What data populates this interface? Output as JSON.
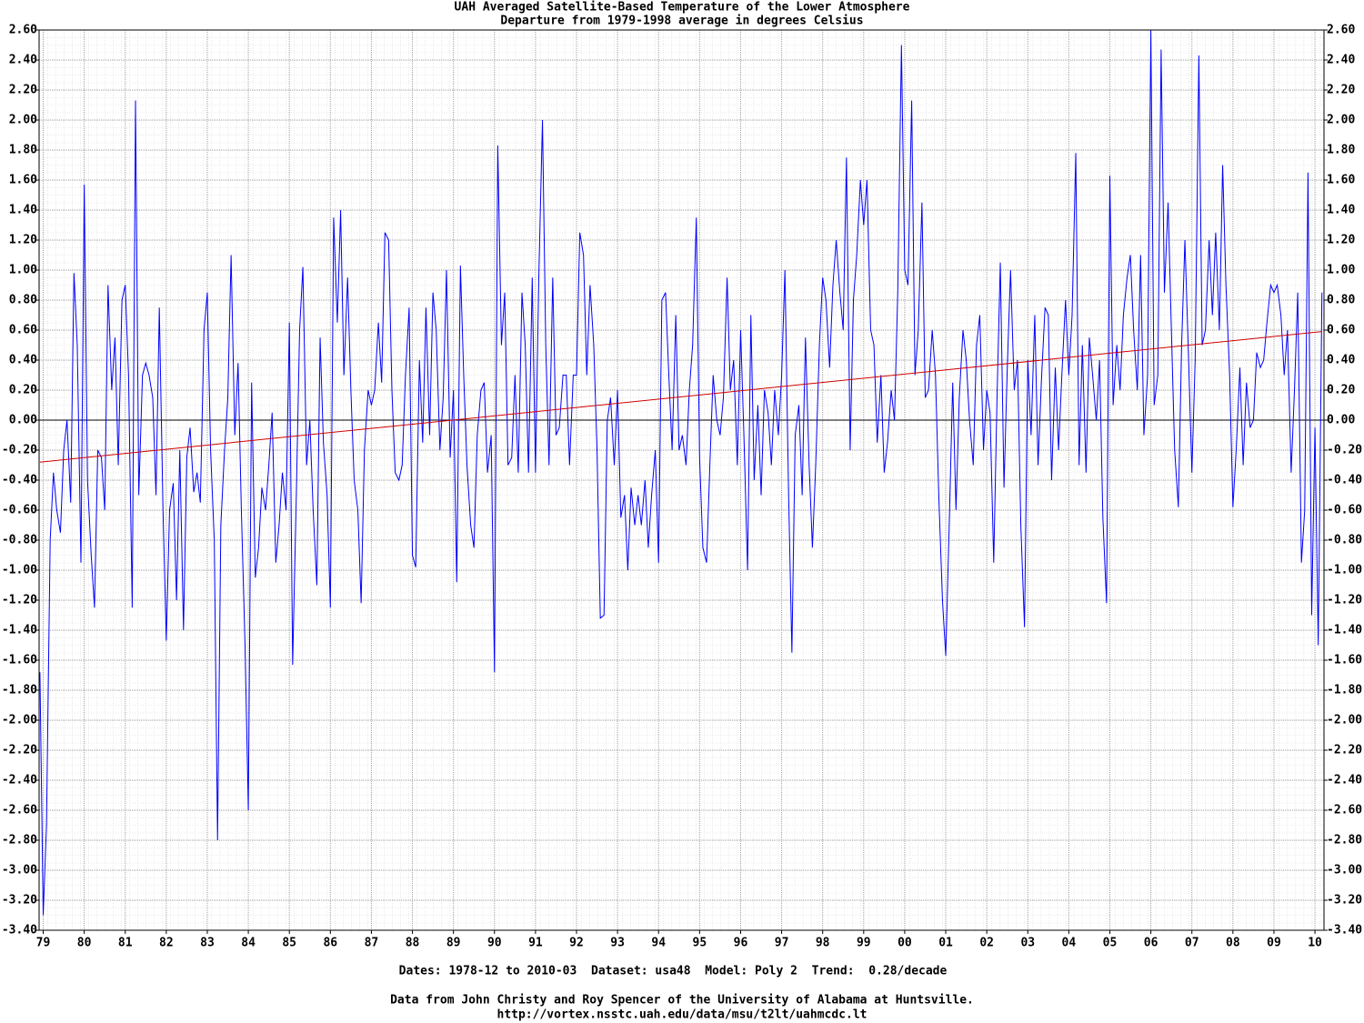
{
  "chart_data": {
    "type": "line",
    "title": "UAH Averaged Satellite-Based Temperature of the Lower Atmosphere",
    "subtitle": "Departure from 1979-1998 average in degrees Celsius",
    "footer": [
      "Dates: 1978-12 to 2010-03  Dataset: usa48  Model: Poly 2  Trend:  0.28/decade",
      "Data from John Christy and Roy Spencer of the University of Alabama at Huntsville.",
      "http://vortex.nsstc.uah.edu/data/msu/t2lt/uahmcdc.lt"
    ],
    "xlim": [
      1978.9,
      2010.22
    ],
    "ylim": [
      -3.4,
      2.6
    ],
    "grid": true,
    "reference_line": 0,
    "xticks": [
      {
        "value": 1979,
        "label": "79"
      },
      {
        "value": 1980,
        "label": "80"
      },
      {
        "value": 1981,
        "label": "81"
      },
      {
        "value": 1982,
        "label": "82"
      },
      {
        "value": 1983,
        "label": "83"
      },
      {
        "value": 1984,
        "label": "84"
      },
      {
        "value": 1985,
        "label": "85"
      },
      {
        "value": 1986,
        "label": "86"
      },
      {
        "value": 1987,
        "label": "87"
      },
      {
        "value": 1988,
        "label": "88"
      },
      {
        "value": 1989,
        "label": "89"
      },
      {
        "value": 1990,
        "label": "90"
      },
      {
        "value": 1991,
        "label": "91"
      },
      {
        "value": 1992,
        "label": "92"
      },
      {
        "value": 1993,
        "label": "93"
      },
      {
        "value": 1994,
        "label": "94"
      },
      {
        "value": 1995,
        "label": "95"
      },
      {
        "value": 1996,
        "label": "96"
      },
      {
        "value": 1997,
        "label": "97"
      },
      {
        "value": 1998,
        "label": "98"
      },
      {
        "value": 1999,
        "label": "99"
      },
      {
        "value": 2000,
        "label": "00"
      },
      {
        "value": 2001,
        "label": "01"
      },
      {
        "value": 2002,
        "label": "02"
      },
      {
        "value": 2003,
        "label": "03"
      },
      {
        "value": 2004,
        "label": "04"
      },
      {
        "value": 2005,
        "label": "05"
      },
      {
        "value": 2006,
        "label": "06"
      },
      {
        "value": 2007,
        "label": "07"
      },
      {
        "value": 2008,
        "label": "08"
      },
      {
        "value": 2009,
        "label": "09"
      },
      {
        "value": 2010,
        "label": "10"
      }
    ],
    "yticks": [
      {
        "value": -3.4,
        "label": "-3.40"
      },
      {
        "value": -3.2,
        "label": "-3.20"
      },
      {
        "value": -3.0,
        "label": "-3.00"
      },
      {
        "value": -2.8,
        "label": "-2.80"
      },
      {
        "value": -2.6,
        "label": "-2.60"
      },
      {
        "value": -2.4,
        "label": "-2.40"
      },
      {
        "value": -2.2,
        "label": "-2.20"
      },
      {
        "value": -2.0,
        "label": "-2.00"
      },
      {
        "value": -1.8,
        "label": "-1.80"
      },
      {
        "value": -1.6,
        "label": "-1.60"
      },
      {
        "value": -1.4,
        "label": "-1.40"
      },
      {
        "value": -1.2,
        "label": "-1.20"
      },
      {
        "value": -1.0,
        "label": "-1.00"
      },
      {
        "value": -0.8,
        "label": "-0.80"
      },
      {
        "value": -0.6,
        "label": "-0.60"
      },
      {
        "value": -0.4,
        "label": "-0.40"
      },
      {
        "value": -0.2,
        "label": "-0.20"
      },
      {
        "value": 0,
        "label": "0.00"
      },
      {
        "value": 0.2,
        "label": "0.20"
      },
      {
        "value": 0.4,
        "label": "0.40"
      },
      {
        "value": 0.6,
        "label": "0.60"
      },
      {
        "value": 0.8,
        "label": "0.80"
      },
      {
        "value": 1.0,
        "label": "1.00"
      },
      {
        "value": 1.2,
        "label": "1.20"
      },
      {
        "value": 1.4,
        "label": "1.40"
      },
      {
        "value": 1.6,
        "label": "1.60"
      },
      {
        "value": 1.8,
        "label": "1.80"
      },
      {
        "value": 2.0,
        "label": "2.00"
      },
      {
        "value": 2.2,
        "label": "2.20"
      },
      {
        "value": 2.4,
        "label": "2.40"
      },
      {
        "value": 2.6,
        "label": "2.60"
      }
    ],
    "series": [
      {
        "color": "#0000ff",
        "x": [
          1978.92,
          1979,
          1979.08,
          1979.17,
          1979.25,
          1979.33,
          1979.42,
          1979.5,
          1979.58,
          1979.67,
          1979.75,
          1979.83,
          1979.92,
          1980,
          1980.08,
          1980.17,
          1980.25,
          1980.33,
          1980.42,
          1980.5,
          1980.58,
          1980.67,
          1980.75,
          1980.83,
          1980.92,
          1981,
          1981.08,
          1981.17,
          1981.25,
          1981.33,
          1981.42,
          1981.5,
          1981.58,
          1981.67,
          1981.75,
          1981.83,
          1981.92,
          1982,
          1982.08,
          1982.17,
          1982.25,
          1982.33,
          1982.42,
          1982.5,
          1982.58,
          1982.67,
          1982.75,
          1982.83,
          1982.92,
          1983,
          1983.08,
          1983.17,
          1983.25,
          1983.33,
          1983.42,
          1983.5,
          1983.58,
          1983.67,
          1983.75,
          1983.83,
          1983.92,
          1984,
          1984.08,
          1984.17,
          1984.25,
          1984.33,
          1984.42,
          1984.5,
          1984.58,
          1984.67,
          1984.75,
          1984.83,
          1984.92,
          1985,
          1985.08,
          1985.17,
          1985.25,
          1985.33,
          1985.42,
          1985.5,
          1985.58,
          1985.67,
          1985.75,
          1985.83,
          1985.92,
          1986,
          1986.08,
          1986.17,
          1986.25,
          1986.33,
          1986.42,
          1986.5,
          1986.58,
          1986.67,
          1986.75,
          1986.83,
          1986.92,
          1987,
          1987.08,
          1987.17,
          1987.25,
          1987.33,
          1987.42,
          1987.5,
          1987.58,
          1987.67,
          1987.75,
          1987.83,
          1987.92,
          1988,
          1988.08,
          1988.17,
          1988.25,
          1988.33,
          1988.42,
          1988.5,
          1988.58,
          1988.67,
          1988.75,
          1988.83,
          1988.92,
          1989,
          1989.08,
          1989.17,
          1989.25,
          1989.33,
          1989.42,
          1989.5,
          1989.58,
          1989.67,
          1989.75,
          1989.83,
          1989.92,
          1990,
          1990.08,
          1990.17,
          1990.25,
          1990.33,
          1990.42,
          1990.5,
          1990.58,
          1990.67,
          1990.75,
          1990.83,
          1990.92,
          1991,
          1991.08,
          1991.17,
          1991.25,
          1991.33,
          1991.42,
          1991.5,
          1991.58,
          1991.67,
          1991.75,
          1991.83,
          1991.92,
          1992,
          1992.08,
          1992.17,
          1992.25,
          1992.33,
          1992.42,
          1992.5,
          1992.58,
          1992.67,
          1992.75,
          1992.83,
          1992.92,
          1993,
          1993.08,
          1993.17,
          1993.25,
          1993.33,
          1993.42,
          1993.5,
          1993.58,
          1993.67,
          1993.75,
          1993.83,
          1993.92,
          1994,
          1994.08,
          1994.17,
          1994.25,
          1994.33,
          1994.42,
          1994.5,
          1994.58,
          1994.67,
          1994.75,
          1994.83,
          1994.92,
          1995,
          1995.08,
          1995.17,
          1995.25,
          1995.33,
          1995.42,
          1995.5,
          1995.58,
          1995.67,
          1995.75,
          1995.83,
          1995.92,
          1996,
          1996.08,
          1996.17,
          1996.25,
          1996.33,
          1996.42,
          1996.5,
          1996.58,
          1996.67,
          1996.75,
          1996.83,
          1996.92,
          1997,
          1997.08,
          1997.17,
          1997.25,
          1997.33,
          1997.42,
          1997.5,
          1997.58,
          1997.67,
          1997.75,
          1997.83,
          1997.92,
          1998,
          1998.08,
          1998.17,
          1998.25,
          1998.33,
          1998.42,
          1998.5,
          1998.58,
          1998.67,
          1998.75,
          1998.83,
          1998.92,
          1999,
          1999.08,
          1999.17,
          1999.25,
          1999.33,
          1999.42,
          1999.5,
          1999.58,
          1999.67,
          1999.75,
          1999.83,
          1999.92,
          2000,
          2000.08,
          2000.17,
          2000.25,
          2000.33,
          2000.42,
          2000.5,
          2000.58,
          2000.67,
          2000.75,
          2000.83,
          2000.92,
          2001,
          2001.08,
          2001.17,
          2001.25,
          2001.33,
          2001.42,
          2001.5,
          2001.58,
          2001.67,
          2001.75,
          2001.83,
          2001.92,
          2002,
          2002.08,
          2002.17,
          2002.25,
          2002.33,
          2002.42,
          2002.5,
          2002.58,
          2002.67,
          2002.75,
          2002.83,
          2002.92,
          2003,
          2003.08,
          2003.17,
          2003.25,
          2003.33,
          2003.42,
          2003.5,
          2003.58,
          2003.67,
          2003.75,
          2003.83,
          2003.92,
          2004,
          2004.08,
          2004.17,
          2004.25,
          2004.33,
          2004.42,
          2004.5,
          2004.58,
          2004.67,
          2004.75,
          2004.83,
          2004.92,
          2005,
          2005.08,
          2005.17,
          2005.25,
          2005.33,
          2005.42,
          2005.5,
          2005.58,
          2005.67,
          2005.75,
          2005.83,
          2005.92,
          2006,
          2006.08,
          2006.17,
          2006.25,
          2006.33,
          2006.42,
          2006.5,
          2006.58,
          2006.67,
          2006.75,
          2006.83,
          2006.92,
          2007,
          2007.08,
          2007.17,
          2007.25,
          2007.33,
          2007.42,
          2007.5,
          2007.58,
          2007.67,
          2007.75,
          2007.83,
          2007.92,
          2008,
          2008.08,
          2008.17,
          2008.25,
          2008.33,
          2008.42,
          2008.5,
          2008.58,
          2008.67,
          2008.75,
          2008.83,
          2008.92,
          2009,
          2009.08,
          2009.17,
          2009.25,
          2009.33,
          2009.42,
          2009.5,
          2009.58,
          2009.67,
          2009.75,
          2009.83,
          2009.92,
          2010,
          2010.08,
          2010.17
        ],
        "values": [
          -1.68,
          -3.3,
          -2.7,
          -0.8,
          -0.35,
          -0.6,
          -0.75,
          -0.2,
          0.0,
          -0.55,
          0.98,
          0.5,
          -0.95,
          1.57,
          -0.4,
          -0.9,
          -1.25,
          -0.2,
          -0.25,
          -0.6,
          0.9,
          0.2,
          0.55,
          -0.3,
          0.8,
          0.9,
          0.3,
          -1.25,
          2.13,
          -0.5,
          0.3,
          0.38,
          0.3,
          0.15,
          -0.5,
          0.75,
          -0.6,
          -1.47,
          -0.6,
          -0.42,
          -1.2,
          -0.2,
          -1.4,
          -0.25,
          -0.05,
          -0.48,
          -0.35,
          -0.55,
          0.6,
          0.85,
          -0.2,
          -0.8,
          -2.8,
          -0.7,
          -0.2,
          0.15,
          1.1,
          -0.1,
          0.38,
          -0.6,
          -1.5,
          -2.6,
          0.25,
          -1.05,
          -0.85,
          -0.45,
          -0.6,
          -0.3,
          0.05,
          -0.95,
          -0.7,
          -0.35,
          -0.6,
          0.65,
          -1.63,
          -0.5,
          0.6,
          1.02,
          -0.3,
          0.0,
          -0.6,
          -1.1,
          0.55,
          -0.15,
          -0.5,
          -1.25,
          1.35,
          0.65,
          1.4,
          0.3,
          0.95,
          0.2,
          -0.4,
          -0.6,
          -1.22,
          -0.2,
          0.2,
          0.1,
          0.2,
          0.65,
          0.25,
          1.25,
          1.2,
          0.2,
          -0.35,
          -0.4,
          -0.3,
          0.3,
          0.75,
          -0.9,
          -0.98,
          0.4,
          -0.15,
          0.75,
          -0.1,
          0.85,
          0.6,
          -0.2,
          0.15,
          1.0,
          -0.25,
          0.2,
          -1.08,
          1.03,
          0.3,
          -0.3,
          -0.7,
          -0.85,
          -0.1,
          0.2,
          0.25,
          -0.35,
          -0.1,
          -1.68,
          1.83,
          0.5,
          0.85,
          -0.3,
          -0.25,
          0.3,
          -0.35,
          0.85,
          0.5,
          -0.35,
          0.95,
          -0.35,
          0.95,
          2.0,
          0.5,
          -0.3,
          0.95,
          -0.1,
          -0.05,
          0.3,
          0.3,
          -0.3,
          0.3,
          0.3,
          1.25,
          1.1,
          0.3,
          0.9,
          0.5,
          -0.2,
          -1.32,
          -1.3,
          0.0,
          0.15,
          -0.3,
          0.2,
          -0.65,
          -0.5,
          -1.0,
          -0.45,
          -0.7,
          -0.5,
          -0.7,
          -0.4,
          -0.85,
          -0.5,
          -0.2,
          -0.95,
          0.8,
          0.85,
          0.3,
          -0.2,
          0.7,
          -0.2,
          -0.1,
          -0.3,
          0.2,
          0.5,
          1.35,
          -0.25,
          -0.85,
          -0.95,
          -0.3,
          0.3,
          0.0,
          -0.1,
          0.15,
          0.95,
          0.2,
          0.4,
          -0.3,
          0.6,
          -0.1,
          -1.0,
          0.7,
          -0.4,
          0.1,
          -0.5,
          0.2,
          0.05,
          -0.3,
          0.2,
          -0.1,
          0.3,
          1.0,
          -0.5,
          -1.55,
          -0.1,
          0.1,
          -0.5,
          0.55,
          -0.3,
          -0.85,
          -0.3,
          0.5,
          0.95,
          0.8,
          0.35,
          0.9,
          1.2,
          0.85,
          0.6,
          1.75,
          -0.2,
          0.8,
          1.1,
          1.6,
          1.3,
          1.6,
          0.6,
          0.5,
          -0.15,
          0.3,
          -0.35,
          -0.15,
          0.2,
          0.0,
          0.85,
          2.5,
          1.0,
          0.9,
          2.13,
          0.3,
          0.6,
          1.45,
          0.15,
          0.2,
          0.6,
          0.3,
          -0.5,
          -1.2,
          -1.57,
          -0.75,
          0.25,
          -0.6,
          0.15,
          0.6,
          0.4,
          0.0,
          -0.3,
          0.5,
          0.7,
          -0.2,
          0.2,
          0.05,
          -0.95,
          0.15,
          1.05,
          -0.45,
          0.35,
          1.0,
          0.2,
          0.4,
          -0.7,
          -1.38,
          0.4,
          -0.1,
          0.7,
          -0.3,
          0.25,
          0.75,
          0.7,
          -0.4,
          0.35,
          -0.2,
          0.3,
          0.8,
          0.3,
          0.7,
          1.78,
          -0.3,
          0.5,
          -0.35,
          0.55,
          0.3,
          0.0,
          0.4,
          -0.65,
          -1.22,
          1.63,
          0.1,
          0.5,
          0.2,
          0.7,
          0.95,
          1.1,
          0.6,
          0.2,
          1.1,
          -0.1,
          0.3,
          2.6,
          0.1,
          0.3,
          2.47,
          0.85,
          1.45,
          0.6,
          -0.2,
          -0.58,
          0.5,
          1.2,
          0.4,
          -0.35,
          0.4,
          2.43,
          0.5,
          0.6,
          1.2,
          0.7,
          1.25,
          0.6,
          1.7,
          0.9,
          0.3,
          -0.58,
          -0.2,
          0.35,
          -0.3,
          0.25,
          -0.05,
          0.0,
          0.45,
          0.35,
          0.4,
          0.65,
          0.9,
          0.85,
          0.9,
          0.7,
          0.3,
          0.6,
          -0.35,
          0.2,
          0.85,
          -0.95,
          -0.6,
          1.65,
          -1.3,
          -0.05,
          -1.5,
          0.85
        ]
      },
      {
        "color": "#d00000",
        "x": [
          1978.92,
          2010.17
        ],
        "values": [
          -0.28,
          0.59
        ]
      }
    ]
  }
}
